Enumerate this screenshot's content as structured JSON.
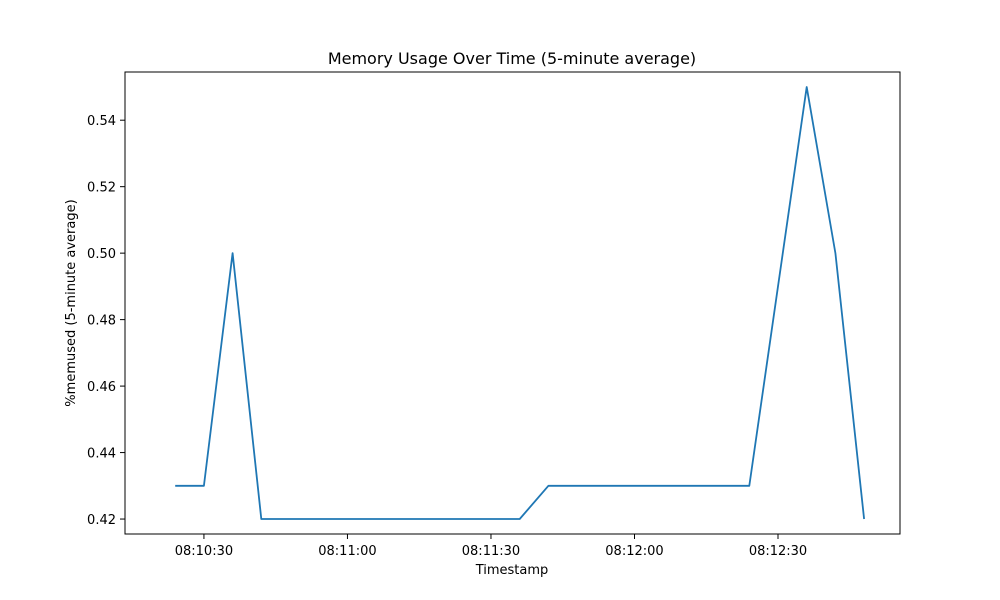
{
  "chart_data": {
    "type": "line",
    "title": "Memory Usage Over Time (5-minute average)",
    "xlabel": "Timestamp",
    "ylabel": "%memused (5-minute average)",
    "x_ticks": [
      "08:10:30",
      "08:11:00",
      "08:11:30",
      "08:12:00",
      "08:12:30"
    ],
    "y_ticks": [
      "0.42",
      "0.44",
      "0.46",
      "0.48",
      "0.50",
      "0.52",
      "0.54"
    ],
    "ylim": [
      0.4155,
      0.5545
    ],
    "xlim": [
      "08:10:19",
      "08:12:48"
    ],
    "grid": false,
    "line_color": "#1f77b4",
    "series": [
      {
        "x": [
          "08:10:24",
          "08:10:30",
          "08:10:36",
          "08:10:42",
          "08:10:48",
          "08:10:54",
          "08:11:00",
          "08:11:06",
          "08:11:12",
          "08:11:18",
          "08:11:24",
          "08:11:30",
          "08:11:36",
          "08:11:42",
          "08:11:48",
          "08:11:54",
          "08:12:00",
          "08:12:06",
          "08:12:12",
          "08:12:18",
          "08:12:24",
          "08:12:30",
          "08:12:36",
          "08:12:42",
          "08:12:48"
        ],
        "values": [
          0.43,
          0.43,
          0.5,
          0.42,
          0.42,
          0.42,
          0.42,
          0.42,
          0.42,
          0.42,
          0.42,
          0.42,
          0.42,
          0.43,
          0.43,
          0.43,
          0.43,
          0.43,
          0.43,
          0.43,
          0.43,
          0.49,
          0.55,
          0.5,
          0.42
        ]
      }
    ]
  }
}
